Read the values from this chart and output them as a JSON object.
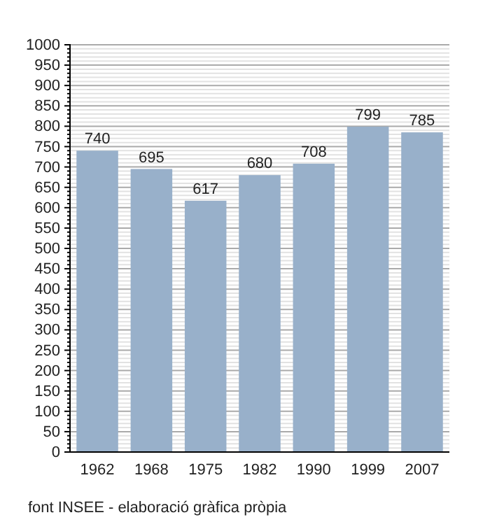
{
  "chart_data": {
    "type": "bar",
    "categories": [
      "1962",
      "1968",
      "1975",
      "1982",
      "1990",
      "1999",
      "2007"
    ],
    "values": [
      740,
      695,
      617,
      680,
      708,
      799,
      785
    ],
    "color": "#98b0ca",
    "ylim": [
      0,
      1000
    ],
    "yticks": [
      0,
      50,
      100,
      150,
      200,
      250,
      300,
      350,
      400,
      450,
      500,
      550,
      600,
      650,
      700,
      750,
      800,
      850,
      900,
      950,
      1000
    ],
    "grid": "y",
    "data_labels": true,
    "annotations": [
      "font INSEE - elaboració gràfica pròpia"
    ]
  }
}
